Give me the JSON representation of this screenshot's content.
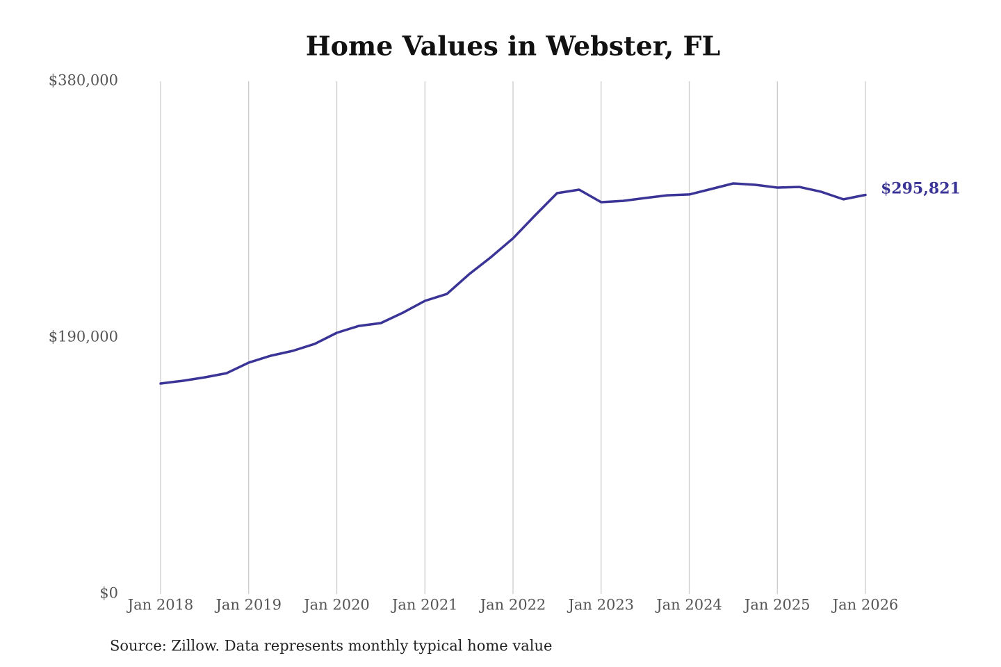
{
  "chart_data": {
    "type": "line",
    "title": "Home Values in Webster, FL",
    "x": [
      2018,
      2018.25,
      2018.5,
      2018.75,
      2019,
      2019.25,
      2019.5,
      2019.75,
      2020,
      2020.25,
      2020.5,
      2020.75,
      2021,
      2021.25,
      2021.5,
      2021.75,
      2022,
      2022.25,
      2022.5,
      2022.75,
      2023,
      2023.25,
      2023.5,
      2023.75,
      2024,
      2024.25,
      2024.5,
      2024.75,
      2025,
      2025.25,
      2025.5,
      2025.75,
      2026
    ],
    "values": [
      156000,
      158000,
      160600,
      163700,
      171500,
      176600,
      180200,
      185400,
      193600,
      198700,
      200800,
      208500,
      217300,
      222400,
      236900,
      249700,
      263600,
      280600,
      297100,
      299700,
      290400,
      291400,
      293500,
      295500,
      296100,
      300200,
      304300,
      303300,
      301200,
      301700,
      298100,
      292500,
      295821
    ],
    "value_labels": [
      null,
      null,
      null,
      null,
      null,
      null,
      null,
      null,
      null,
      null,
      null,
      null,
      null,
      null,
      null,
      null,
      null,
      null,
      null,
      null,
      null,
      null,
      null,
      null,
      null,
      null,
      null,
      null,
      null,
      null,
      null,
      null,
      "$295,821"
    ],
    "color": "#3b3497",
    "xlim": [
      2018,
      2026
    ],
    "xticks": [
      {
        "value": 2018,
        "label": "Jan 2018"
      },
      {
        "value": 2019,
        "label": "Jan 2019"
      },
      {
        "value": 2020,
        "label": "Jan 2020"
      },
      {
        "value": 2021,
        "label": "Jan 2021"
      },
      {
        "value": 2022,
        "label": "Jan 2022"
      },
      {
        "value": 2023,
        "label": "Jan 2023"
      },
      {
        "value": 2024,
        "label": "Jan 2024"
      },
      {
        "value": 2025,
        "label": "Jan 2025"
      },
      {
        "value": 2026,
        "label": "Jan 2026"
      }
    ],
    "ylim": [
      0,
      380000
    ],
    "yticks": [
      {
        "value": 0,
        "label": "$0"
      },
      {
        "value": 190000,
        "label": "$190,000"
      },
      {
        "value": 380000,
        "label": "$380,000"
      }
    ],
    "grid": true,
    "source": "Source: Zillow. Data represents monthly typical home value"
  }
}
